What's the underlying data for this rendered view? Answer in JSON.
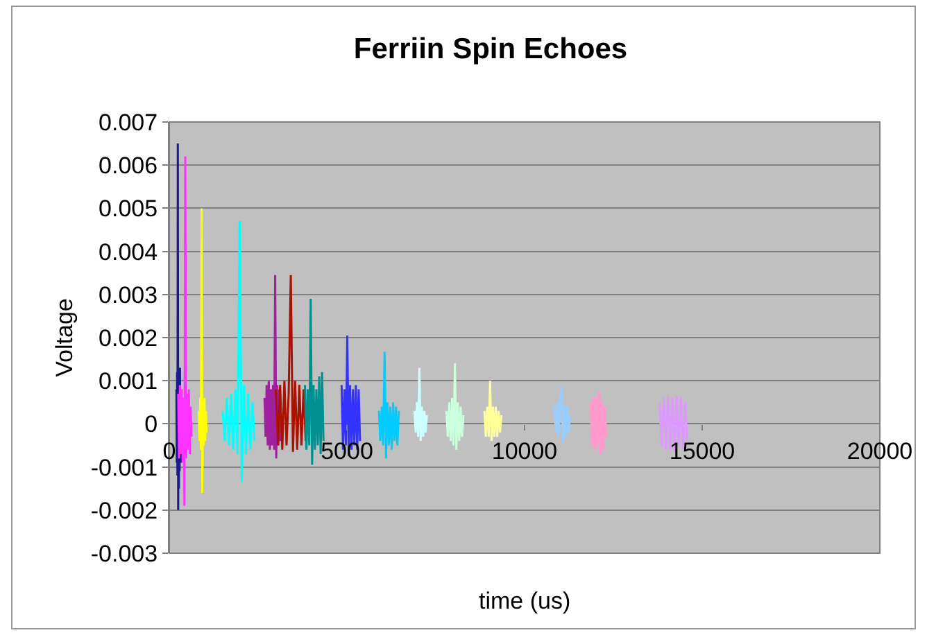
{
  "chart_data": {
    "type": "line",
    "title": "Ferriin Spin Echoes",
    "xlabel": "time (us)",
    "ylabel": "Voltage",
    "xlim": [
      0,
      20000
    ],
    "xticks": [
      0,
      5000,
      10000,
      15000,
      20000
    ],
    "ylim": [
      -0.003,
      0.007
    ],
    "yticks": [
      -0.003,
      -0.002,
      -0.001,
      0,
      0.001,
      0.002,
      0.003,
      0.004,
      0.005,
      0.006,
      0.007
    ],
    "grid": "y",
    "marker": "none",
    "line_style": "solid",
    "series": [
      {
        "color": "#1a1a8c",
        "x": [
          200,
          210,
          220,
          230,
          240,
          250,
          260,
          270,
          280,
          290,
          300,
          310,
          320,
          330,
          340,
          350
        ],
        "values": [
          0.0008,
          -0.0009,
          0.0012,
          -0.0012,
          0.0065,
          -0.002,
          0.0011,
          -0.0015,
          0.0009,
          -0.0011,
          0.0013,
          -0.0008,
          0.0007,
          -0.0009,
          0.0005,
          -0.0004
        ]
      },
      {
        "color": "#ff33ff",
        "x": [
          250,
          275,
          300,
          325,
          350,
          375,
          400,
          425,
          450,
          475,
          500,
          525,
          550,
          575,
          600,
          625
        ],
        "values": [
          0.0007,
          -0.0008,
          0.0009,
          -0.0007,
          0.0008,
          -0.0009,
          0.0006,
          -0.0019,
          0.0062,
          -0.0008,
          0.0007,
          -0.0006,
          0.0008,
          -0.0007,
          0.0004,
          -0.0003
        ]
      },
      {
        "color": "#ffff00",
        "x": [
          830,
          850,
          870,
          890,
          910,
          930,
          950,
          970,
          990,
          1010,
          1030,
          1050
        ],
        "values": [
          0.0003,
          -0.0004,
          0.0006,
          -0.0006,
          0.005,
          -0.0016,
          0.0005,
          -0.0005,
          0.0006,
          -0.0004,
          0.0003,
          -0.0002
        ]
      },
      {
        "color": "#00ffff",
        "x": [
          1500,
          1560,
          1620,
          1680,
          1740,
          1800,
          1860,
          1920,
          1980,
          2040,
          2100,
          2160,
          2220,
          2280,
          2340,
          2400
        ],
        "values": [
          0.0003,
          -0.0004,
          0.0006,
          -0.0005,
          0.0007,
          -0.0006,
          0.0008,
          -0.0007,
          0.0047,
          -0.00135,
          0.0009,
          -0.0007,
          0.0007,
          -0.0006,
          0.0005,
          -0.0004
        ]
      },
      {
        "color": "#a020a0",
        "x": [
          2680,
          2710,
          2740,
          2770,
          2800,
          2830,
          2860,
          2890,
          2920,
          2950,
          2980,
          3010,
          3040,
          3070,
          3100,
          3130
        ],
        "values": [
          0.0006,
          -0.0003,
          0.0009,
          -0.0005,
          0.001,
          -0.0006,
          0.0008,
          -0.0005,
          0.0009,
          -0.0006,
          0.00345,
          -0.0008,
          0.0009,
          -0.0005,
          0.0008,
          -0.0004
        ]
      },
      {
        "color": "#aa1100",
        "x": [
          3000,
          3060,
          3120,
          3180,
          3240,
          3300,
          3360,
          3420,
          3480,
          3540,
          3600,
          3660,
          3720,
          3780,
          3840
        ],
        "values": [
          0.0008,
          -0.0005,
          0.0009,
          -0.0006,
          0.001,
          -0.0005,
          0.0007,
          0.00345,
          -0.00065,
          0.001,
          -0.0006,
          0.0009,
          -0.0005,
          0.0008,
          -0.0004
        ]
      },
      {
        "color": "#009090",
        "x": [
          3820,
          3860,
          3900,
          3940,
          3980,
          4020,
          4060,
          4100,
          4140,
          4180,
          4220,
          4260,
          4300,
          4340
        ],
        "values": [
          0.0009,
          -0.0006,
          0.0008,
          -0.0005,
          0.0029,
          -0.00095,
          0.0009,
          -0.0006,
          0.0008,
          -0.0005,
          0.0011,
          -0.0007,
          0.0012,
          -0.0004
        ]
      },
      {
        "color": "#3333ff",
        "x": [
          4850,
          4890,
          4930,
          4970,
          5010,
          5050,
          5090,
          5130,
          5170,
          5210,
          5250,
          5290,
          5330,
          5370
        ],
        "values": [
          0.0009,
          -0.0006,
          0.0008,
          -0.0005,
          0.00205,
          -0.00075,
          0.0009,
          -0.0006,
          0.0008,
          -0.0005,
          0.0009,
          -0.0006,
          0.0008,
          -0.0004
        ]
      },
      {
        "color": "#00ccff",
        "x": [
          5900,
          5940,
          5980,
          6020,
          6060,
          6100,
          6140,
          6180,
          6220,
          6260,
          6300,
          6340,
          6380,
          6420,
          6460
        ],
        "values": [
          0.0003,
          -0.0004,
          0.0004,
          -0.0005,
          0.00167,
          -0.0008,
          0.0005,
          -0.0005,
          0.0004,
          -0.0006,
          0.0005,
          -0.0004,
          0.0004,
          -0.0005,
          0.0003
        ]
      },
      {
        "color": "#ccffff",
        "x": [
          6900,
          6935,
          6970,
          7005,
          7040,
          7075,
          7110,
          7145,
          7180,
          7215,
          7250
        ],
        "values": [
          0.0003,
          -0.0002,
          0.0005,
          -0.0003,
          0.0013,
          -0.0004,
          0.0004,
          -0.0003,
          0.0003,
          -0.0002,
          0.0002
        ]
      },
      {
        "color": "#ccffdd",
        "x": [
          7800,
          7840,
          7880,
          7920,
          7960,
          8000,
          8040,
          8080,
          8120,
          8160,
          8200,
          8240,
          8280
        ],
        "values": [
          0.0003,
          -0.0003,
          0.0005,
          -0.0004,
          0.0006,
          -0.0005,
          0.0014,
          -0.0006,
          0.0005,
          -0.0004,
          0.0004,
          -0.0003,
          0.0002
        ]
      },
      {
        "color": "#ffff99",
        "x": [
          8870,
          8910,
          8950,
          8990,
          9030,
          9070,
          9110,
          9150,
          9190,
          9230,
          9270,
          9310,
          9350
        ],
        "values": [
          0.0003,
          -0.0003,
          0.0004,
          -0.0003,
          0.001,
          -0.0004,
          0.0004,
          -0.0003,
          0.0004,
          -0.0003,
          0.0003,
          -0.0002,
          0.0002
        ]
      },
      {
        "color": "#99ccff",
        "x": [
          10840,
          10880,
          10920,
          10960,
          11000,
          11040,
          11080,
          11120,
          11160,
          11200,
          11240,
          11280
        ],
        "values": [
          0.0004,
          -0.0002,
          0.0005,
          -0.0003,
          0.0005,
          0.00087,
          -0.00042,
          0.0004,
          -0.0003,
          0.0004,
          -0.0002,
          0.0002
        ]
      },
      {
        "color": "#ff99cc",
        "x": [
          11860,
          11900,
          11940,
          11980,
          12020,
          12060,
          12100,
          12140,
          12180,
          12220,
          12260,
          12300
        ],
        "values": [
          0.0005,
          -0.0005,
          0.0006,
          -0.0006,
          0.0006,
          -0.0005,
          0.00075,
          -0.0007,
          0.0005,
          -0.0006,
          0.0004,
          -0.0003
        ]
      },
      {
        "color": "#dd99ff",
        "x": [
          13800,
          13860,
          13920,
          13980,
          14040,
          14100,
          14160,
          14220,
          14280,
          14340,
          14400,
          14460,
          14520,
          14580
        ],
        "values": [
          0.0005,
          -0.0005,
          0.0006,
          -0.0006,
          0.00065,
          -0.0006,
          0.0006,
          -0.00065,
          0.00065,
          -0.0005,
          0.0006,
          -0.0006,
          0.0005,
          -0.0004
        ]
      }
    ]
  }
}
